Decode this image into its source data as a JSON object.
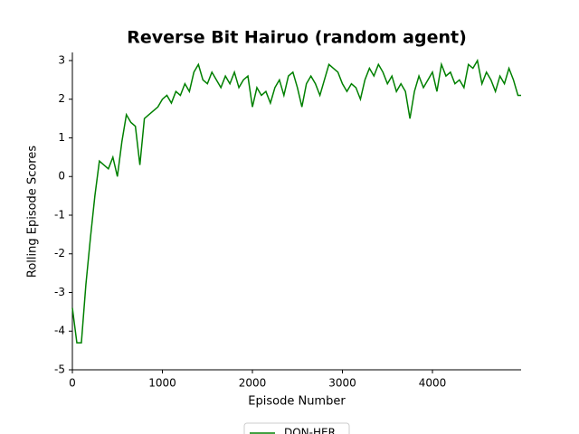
{
  "chart_data": {
    "type": "line",
    "title": "Reverse Bit Hairuo (random agent)",
    "x_label": "Episode Number",
    "y_label": "Rolling Episode Scores",
    "x": [
      0,
      50,
      100,
      150,
      200,
      250,
      300,
      350,
      400,
      450,
      500,
      550,
      600,
      650,
      700,
      750,
      800,
      850,
      900,
      950,
      1000,
      1050,
      1100,
      1150,
      1200,
      1250,
      1300,
      1350,
      1400,
      1450,
      1500,
      1550,
      1600,
      1650,
      1700,
      1750,
      1800,
      1850,
      1900,
      1950,
      2000,
      2050,
      2100,
      2150,
      2200,
      2250,
      2300,
      2350,
      2400,
      2450,
      2500,
      2550,
      2600,
      2650,
      2700,
      2750,
      2800,
      2850,
      2900,
      2950,
      3000,
      3050,
      3100,
      3150,
      3200,
      3250,
      3300,
      3350,
      3400,
      3450,
      3500,
      3550,
      3600,
      3650,
      3700,
      3750,
      3800,
      3850,
      3900,
      3950,
      4000,
      4050,
      4100,
      4150,
      4200,
      4250,
      4300,
      4350,
      4400,
      4450,
      4500,
      4550,
      4600,
      4650,
      4700,
      4750,
      4800,
      4850,
      4900,
      4950,
      4985
    ],
    "series": [
      {
        "name": "DQN-HER",
        "color": "#008000",
        "values": [
          -3.4,
          -4.3,
          -4.3,
          -2.8,
          -1.6,
          -0.5,
          0.4,
          0.3,
          0.2,
          0.5,
          0.0,
          0.9,
          1.6,
          1.4,
          1.3,
          0.3,
          1.5,
          1.6,
          1.7,
          1.8,
          2.0,
          2.1,
          1.9,
          2.2,
          2.1,
          2.4,
          2.2,
          2.7,
          2.9,
          2.5,
          2.4,
          2.7,
          2.5,
          2.3,
          2.6,
          2.4,
          2.7,
          2.3,
          2.5,
          2.6,
          1.8,
          2.3,
          2.1,
          2.2,
          1.9,
          2.3,
          2.5,
          2.1,
          2.6,
          2.7,
          2.3,
          1.8,
          2.4,
          2.6,
          2.4,
          2.1,
          2.5,
          2.9,
          2.8,
          2.7,
          2.4,
          2.2,
          2.4,
          2.3,
          2.0,
          2.5,
          2.8,
          2.6,
          2.9,
          2.7,
          2.4,
          2.6,
          2.2,
          2.4,
          2.2,
          1.5,
          2.2,
          2.6,
          2.3,
          2.5,
          2.7,
          2.2,
          2.9,
          2.6,
          2.7,
          2.4,
          2.5,
          2.3,
          2.9,
          2.8,
          3.0,
          2.4,
          2.7,
          2.5,
          2.2,
          2.6,
          2.4,
          2.8,
          2.5,
          2.1,
          2.1
        ]
      }
    ],
    "xlim": [
      0,
      4985
    ],
    "ylim": [
      -5,
      3.21
    ],
    "xticks": [
      0,
      1000,
      2000,
      3000,
      4000
    ],
    "yticks": [
      -5,
      -4,
      -3,
      -2,
      -1,
      0,
      1,
      2,
      3
    ],
    "legend": "bottom"
  }
}
